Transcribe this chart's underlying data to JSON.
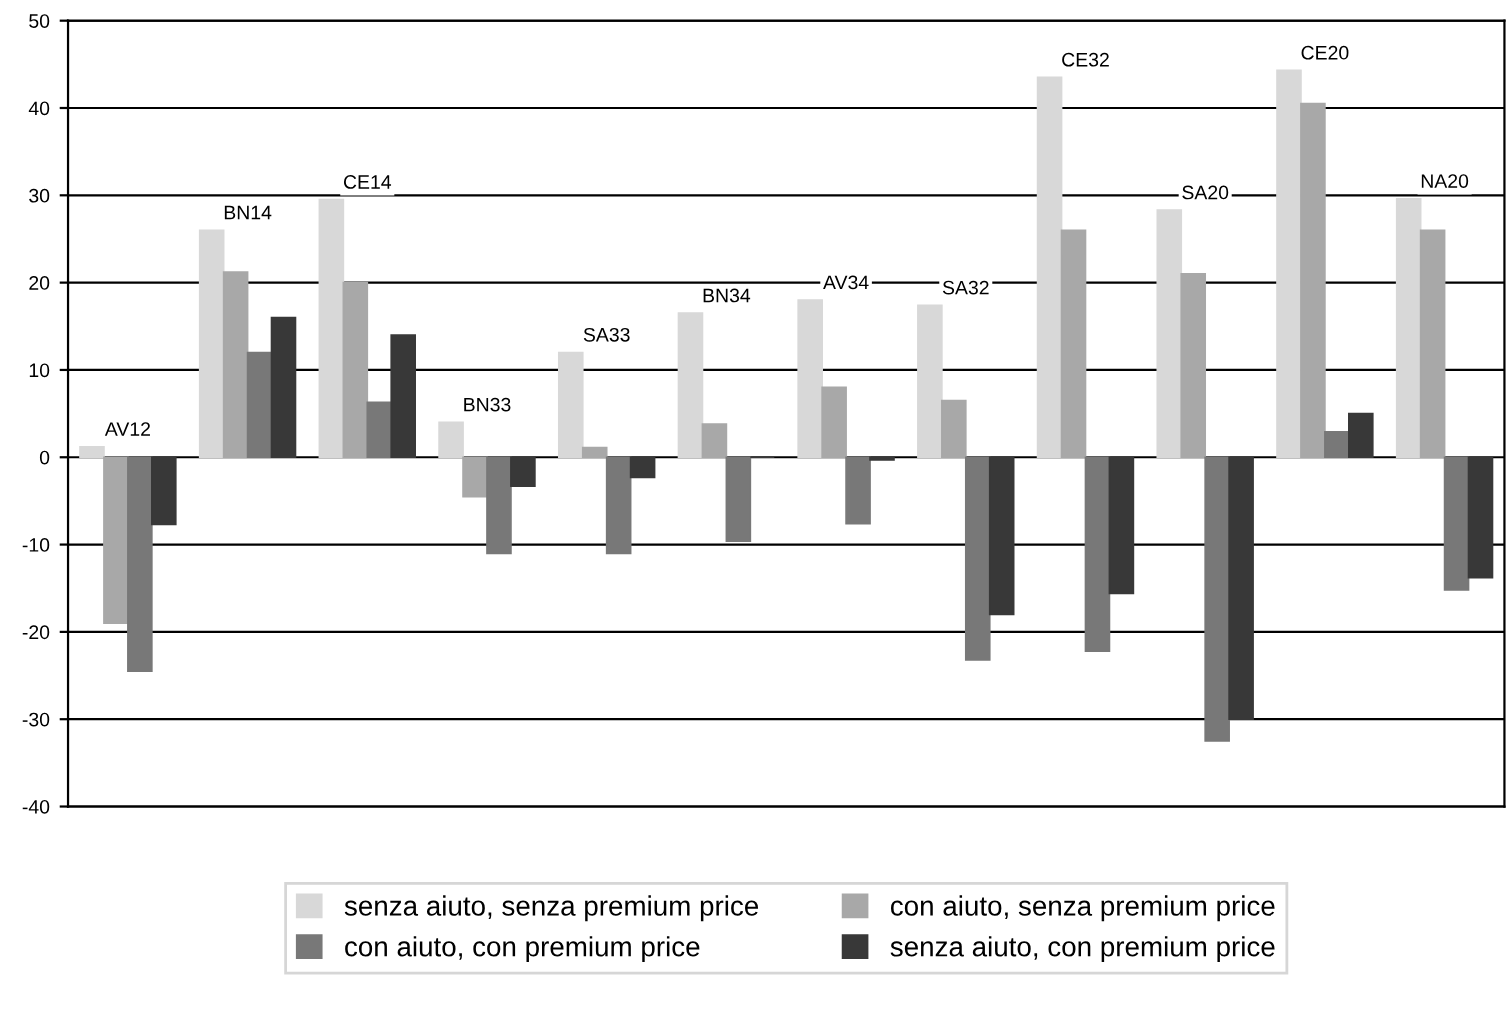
{
  "chart_data": {
    "type": "bar",
    "categories": [
      "AV12",
      "BN14",
      "CE14",
      "BN33",
      "SA33",
      "BN34",
      "AV34",
      "SA32",
      "CE32",
      "SA20",
      "CE20",
      "NA20"
    ],
    "series": [
      {
        "name": "senza aiuto, senza premium price",
        "color": "#d8d8d8",
        "values": [
          1.2,
          26,
          29.5,
          4,
          12,
          16.5,
          18,
          17.4,
          43.5,
          28.3,
          44.3,
          29.6
        ]
      },
      {
        "name": "con aiuto, senza premium price",
        "color": "#a8a8a8",
        "values": [
          -19,
          21.2,
          20,
          -4.5,
          1.1,
          3.8,
          8,
          6.5,
          26,
          21,
          40.5,
          26
        ]
      },
      {
        "name": "con aiuto, con premium price",
        "color": "#787878",
        "values": [
          -24.5,
          12,
          6.3,
          -11,
          -11,
          -9.6,
          -7.6,
          -23.2,
          -22.2,
          -32.5,
          2.9,
          -15.2
        ]
      },
      {
        "name": "senza aiuto, con premium price",
        "color": "#383838",
        "values": [
          -7.7,
          16,
          14,
          -3.3,
          -2.3,
          0,
          -0.3,
          -18,
          -15.6,
          -30,
          5,
          -13.8
        ]
      }
    ],
    "ylim": [
      -40,
      50
    ],
    "yticks": [
      -40,
      -30,
      -20,
      -10,
      0,
      10,
      20,
      30,
      40,
      50
    ],
    "grid": "y",
    "legend": "bottom",
    "tick_labels": "y"
  }
}
